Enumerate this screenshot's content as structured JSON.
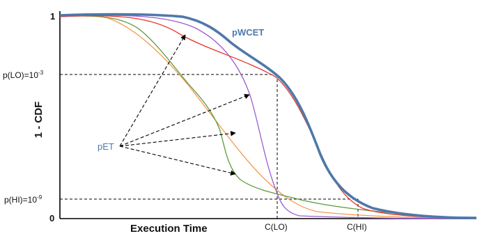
{
  "axes": {
    "x_title": "Execution Time",
    "y_title": "1 - CDF",
    "y_top": "1",
    "y_bottom": "0",
    "p_lo": {
      "base": "p(LO)=10",
      "exp": "-3"
    },
    "p_hi": {
      "base": "p(HI)=10",
      "exp": "-9"
    },
    "c_lo": "C(LO)",
    "c_hi": "C(HI)"
  },
  "labels": {
    "pwcet": "pWCET",
    "pet": "pET"
  },
  "colors": {
    "pwcet": "#4f78aa",
    "pet_label": "#4f78aa",
    "red": "#e8332a",
    "purple": "#9b5bd0",
    "green": "#5e9b3e",
    "orange": "#f39a4c",
    "axis": "#000000"
  }
}
